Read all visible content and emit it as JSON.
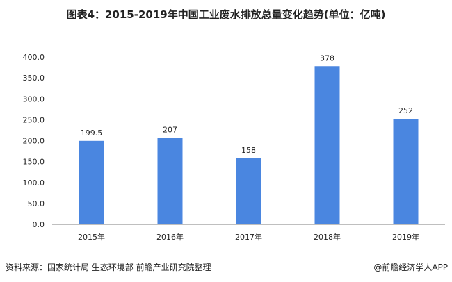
{
  "chart_data": {
    "type": "bar",
    "title": "图表4：2015-2019年中国工业废水排放总量变化趋势(单位：亿吨)",
    "categories": [
      "2015年",
      "2016年",
      "2017年",
      "2018年",
      "2019年"
    ],
    "values": [
      199.5,
      207,
      158,
      378,
      252
    ],
    "data_labels": [
      "199.5",
      "207",
      "158",
      "378",
      "252"
    ],
    "ylim": [
      0,
      400
    ],
    "yticks": [
      "0.0",
      "50.0",
      "100.0",
      "150.0",
      "200.0",
      "250.0",
      "300.0",
      "350.0",
      "400.0"
    ],
    "xlabel": "",
    "ylabel": "",
    "grid": false,
    "bar_color": "#4a86e0"
  },
  "footer": {
    "source": "资料来源：国家统计局 生态环境部 前瞻产业研究院整理",
    "credit": "@前瞻经济学人APP"
  }
}
